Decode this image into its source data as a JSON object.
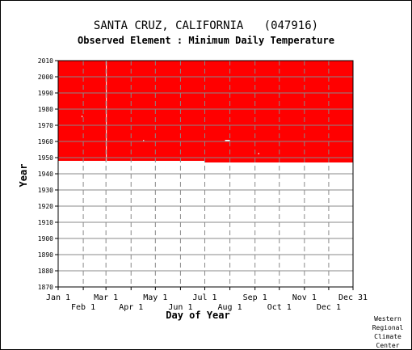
{
  "chart_data": {
    "type": "heatmap",
    "title": "SANTA CRUZ, CALIFORNIA   (047916)",
    "subtitle": "Observed Element : Minimum Daily Temperature",
    "xlabel": "Day of Year",
    "ylabel": "Year",
    "xlim": [
      1,
      365
    ],
    "ylim": [
      1870,
      2010
    ],
    "y_ticks": [
      1870,
      1880,
      1890,
      1900,
      1910,
      1920,
      1930,
      1940,
      1950,
      1960,
      1970,
      1980,
      1990,
      2000,
      2010
    ],
    "x_ticks_top": [
      {
        "label": "Jan 1",
        "day": 1
      },
      {
        "label": "Mar 1",
        "day": 60
      },
      {
        "label": "May 1",
        "day": 121
      },
      {
        "label": "Jul 1",
        "day": 182
      },
      {
        "label": "Sep 1",
        "day": 244
      },
      {
        "label": "Nov 1",
        "day": 305
      },
      {
        "label": "Dec 31",
        "day": 365
      }
    ],
    "x_ticks_bottom": [
      {
        "label": "Feb 1",
        "day": 32
      },
      {
        "label": "Apr 1",
        "day": 91
      },
      {
        "label": "Jun 1",
        "day": 152
      },
      {
        "label": "Aug 1",
        "day": 213
      },
      {
        "label": "Oct 1",
        "day": 274
      },
      {
        "label": "Dec 1",
        "day": 335
      }
    ],
    "grid": true,
    "data_color": "#ff0000",
    "coverage": [
      {
        "day_start": 1,
        "day_end": 182,
        "year_start": 1948,
        "year_end": 2010
      },
      {
        "day_start": 182,
        "day_end": 365,
        "year_start": 1947,
        "year_end": 2010
      }
    ],
    "gaps": [
      {
        "day_start": 60,
        "day_end": 61,
        "year_start": 1948,
        "year_end": 2010
      },
      {
        "day_start": 30,
        "day_end": 31,
        "year_start": 1975,
        "year_end": 1976
      },
      {
        "day_start": 106,
        "day_end": 107,
        "year_start": 1960,
        "year_end": 1961
      },
      {
        "day_start": 207,
        "day_end": 213,
        "year_start": 1960,
        "year_end": 1961
      },
      {
        "day_start": 248,
        "day_end": 249,
        "year_start": 1952,
        "year_end": 1953
      }
    ]
  },
  "credit": [
    "Western",
    "Regional",
    "Climate",
    "Center"
  ]
}
